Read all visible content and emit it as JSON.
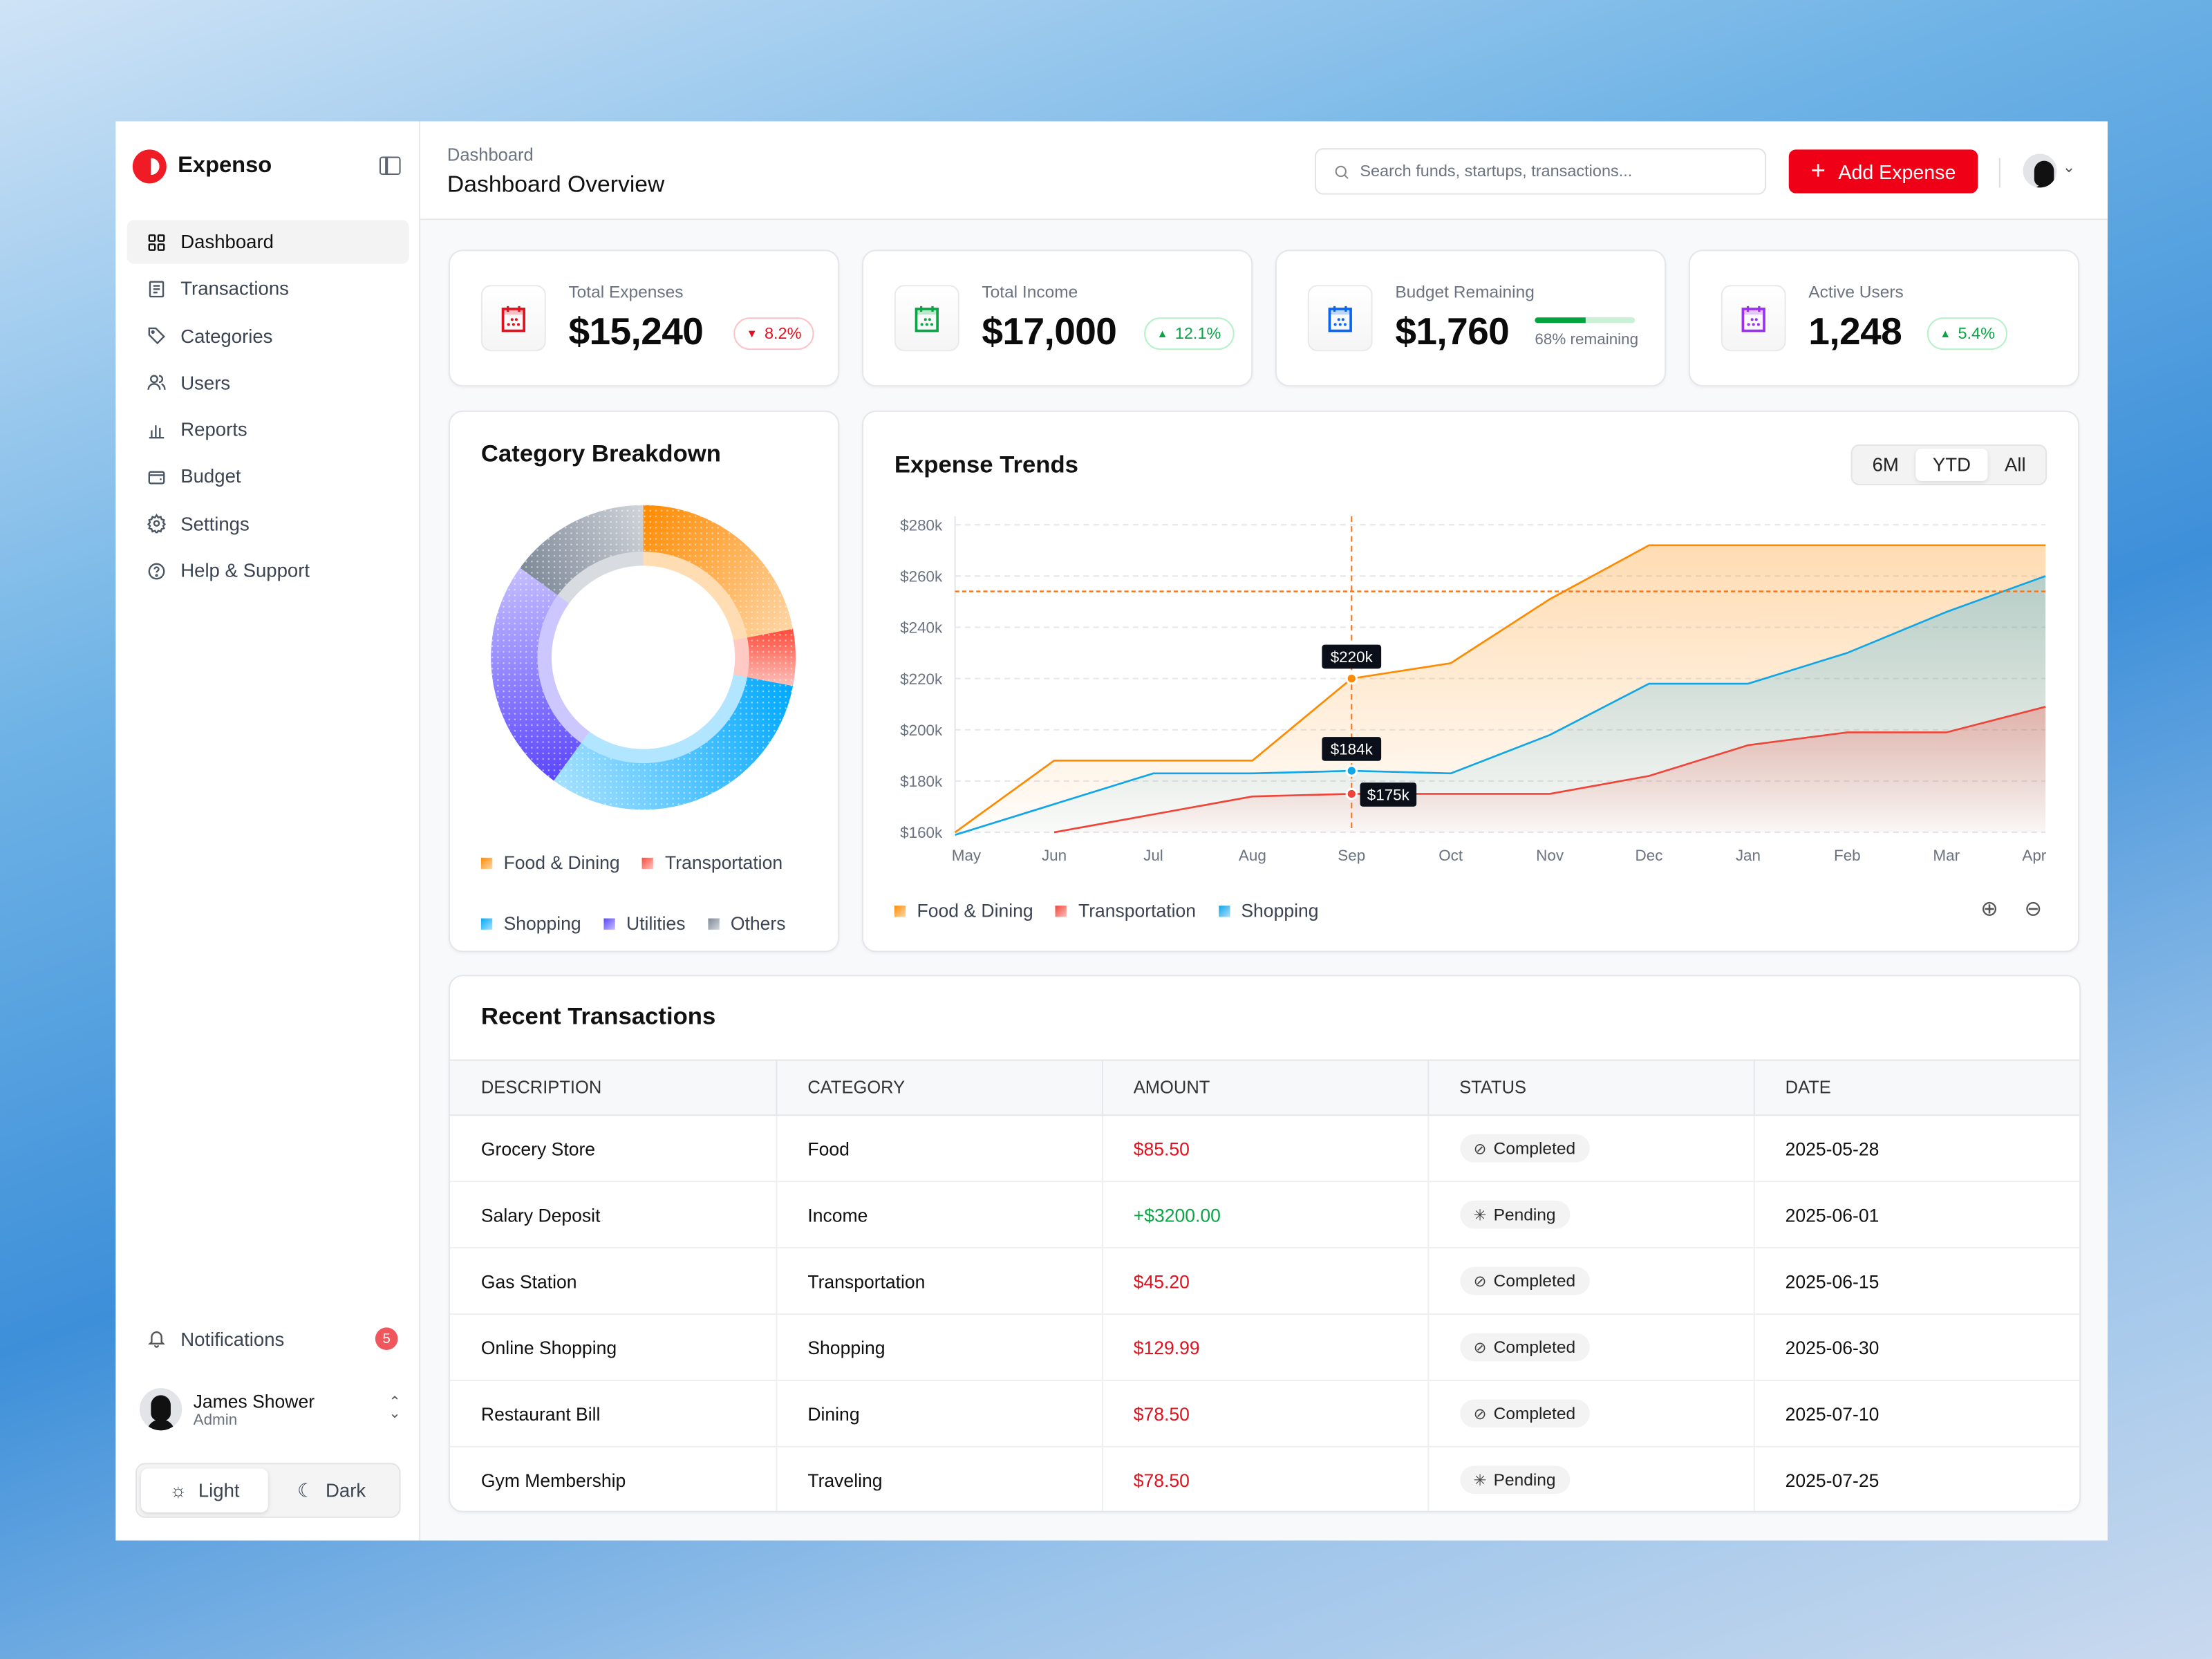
{
  "app": {
    "name": "Expenso",
    "brand_color": "#ef1c25"
  },
  "sidebar": {
    "items": [
      {
        "label": "Dashboard",
        "icon": "grid-icon",
        "active": true
      },
      {
        "label": "Transactions",
        "icon": "receipt-icon"
      },
      {
        "label": "Categories",
        "icon": "tag-icon"
      },
      {
        "label": "Users",
        "icon": "users-icon"
      },
      {
        "label": "Reports",
        "icon": "bar-chart-icon"
      },
      {
        "label": "Budget",
        "icon": "wallet-icon"
      },
      {
        "label": "Settings",
        "icon": "gear-icon"
      },
      {
        "label": "Help & Support",
        "icon": "help-icon"
      }
    ],
    "notifications": {
      "label": "Notifications",
      "count": "5"
    },
    "user": {
      "name": "James Shower",
      "role": "Admin"
    },
    "theme": {
      "light": "Light",
      "dark": "Dark",
      "selected": "Light"
    }
  },
  "header": {
    "breadcrumb": "Dashboard",
    "title": "Dashboard Overview",
    "search_placeholder": "Search funds, startups, transactions...",
    "add_button": "Add Expense"
  },
  "stats": [
    {
      "label": "Total Expenses",
      "value": "$15,240",
      "change": "8.2%",
      "direction": "down",
      "icon_color": "#e3101e"
    },
    {
      "label": "Total Income",
      "value": "$17,000",
      "change": "12.1%",
      "direction": "up",
      "icon_color": "#0aa544"
    },
    {
      "label": "Budget Remaining",
      "value": "$1,760",
      "progress_percent": 68,
      "progress_label": "68% remaining",
      "icon_color": "#0a66f0"
    },
    {
      "label": "Active Users",
      "value": "1,248",
      "change": "5.4%",
      "direction": "up",
      "icon_color": "#9b30f0"
    }
  ],
  "chart_data": [
    {
      "type": "pie",
      "title": "Category Breakdown",
      "donut": true,
      "categories": [
        "Food & Dining",
        "Transportation",
        "Shopping",
        "Utilities",
        "Others"
      ],
      "values": [
        22,
        6,
        32,
        25,
        15
      ],
      "colors": [
        "#ff8a00",
        "#ff4b3a",
        "#00a8ff",
        "#5a46ff",
        "#7d8897"
      ],
      "legend": "bottom"
    },
    {
      "type": "area",
      "title": "Expense Trends",
      "ranges": [
        "6M",
        "YTD",
        "All"
      ],
      "selected_range": "YTD",
      "categories": [
        "May",
        "Jun",
        "Jul",
        "Aug",
        "Sep",
        "Oct",
        "Nov",
        "Dec",
        "Jan",
        "Feb",
        "Mar",
        "Apr"
      ],
      "yticks": [
        "$160k",
        "$180k",
        "$200k",
        "$220k",
        "$240k",
        "$260k",
        "$280k"
      ],
      "ylim": [
        160,
        280
      ],
      "yunit": "k",
      "grid": true,
      "legend": "bottom-left",
      "series": [
        {
          "name": "Food & Dining",
          "color": "#ff8a00",
          "values": [
            160,
            188,
            188,
            188,
            220,
            226,
            251,
            272,
            272,
            272,
            272,
            272
          ]
        },
        {
          "name": "Transportation",
          "color": "#f04438",
          "values": [
            null,
            160,
            167,
            174,
            175,
            175,
            175,
            182,
            194,
            199,
            199,
            209
          ]
        },
        {
          "name": "Shopping",
          "color": "#0ea5e9",
          "values": [
            159,
            171,
            183,
            183,
            184,
            183,
            198,
            218,
            218,
            230,
            246,
            260
          ]
        }
      ],
      "reference_line": 254,
      "crosshair": "Sep",
      "tooltips": [
        {
          "series": "Food & Dining",
          "label": "$220k",
          "value": 220
        },
        {
          "series": "Shopping",
          "label": "$184k",
          "value": 184
        },
        {
          "series": "Transportation",
          "label": "$175k",
          "value": 175
        }
      ]
    }
  ],
  "transactions": {
    "title": "Recent Transactions",
    "columns": [
      "DESCRIPTION",
      "CATEGORY",
      "AMOUNT",
      "STATUS",
      "DATE"
    ],
    "rows": [
      {
        "description": "Grocery Store",
        "category": "Food",
        "amount": "$85.50",
        "type": "neg",
        "status": "Completed",
        "date": "2025-05-28"
      },
      {
        "description": "Salary Deposit",
        "category": "Income",
        "amount": "+$3200.00",
        "type": "pos",
        "status": "Pending",
        "date": "2025-06-01"
      },
      {
        "description": "Gas Station",
        "category": "Transportation",
        "amount": "$45.20",
        "type": "neg",
        "status": "Completed",
        "date": "2025-06-15"
      },
      {
        "description": "Online Shopping",
        "category": "Shopping",
        "amount": "$129.99",
        "type": "neg",
        "status": "Completed",
        "date": "2025-06-30"
      },
      {
        "description": "Restaurant Bill",
        "category": "Dining",
        "amount": "$78.50",
        "type": "neg",
        "status": "Completed",
        "date": "2025-07-10"
      },
      {
        "description": "Gym Membership",
        "category": "Traveling",
        "amount": "$78.50",
        "type": "neg",
        "status": "Pending",
        "date": "2025-07-25"
      }
    ]
  }
}
